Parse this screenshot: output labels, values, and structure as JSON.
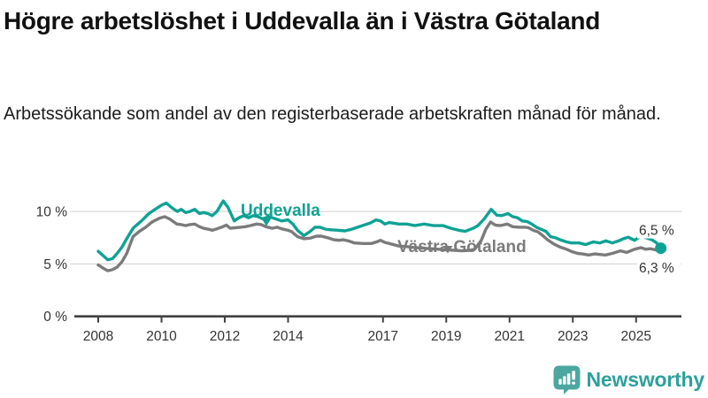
{
  "header": {
    "title": "Högre arbetslöshet i Uddevalla än i Västra Götaland",
    "subtitle": "Arbetssökande som andel av den registerbaserade arbetskraften månad för månad."
  },
  "footer": {
    "brand": "Newsworthy",
    "icon": "chart-speech-bubble-icon",
    "brand_color": "#2FA09A",
    "icon_color": "#4DA7A1"
  },
  "colors": {
    "accent_teal": "#0FA294",
    "series_gray": "#7B7B7B",
    "axis": "#404040",
    "gridline": "#D9D9D9",
    "tick_text": "#333333"
  },
  "chart_data": {
    "type": "line",
    "title": "Högre arbetslöshet i Uddevalla än i Västra Götaland",
    "subtitle": "Arbetssökande som andel av den registerbaserade arbetskraften månad för månad.",
    "xlabel": "",
    "ylabel": "",
    "grid": true,
    "legend_position": "inline-labels-on-lines",
    "xlim": [
      2007.3,
      2026.4
    ],
    "ylim": [
      0,
      12.6
    ],
    "y_ticks": [
      {
        "label": "0 %",
        "value": 0
      },
      {
        "label": "5 %",
        "value": 5
      },
      {
        "label": "10 %",
        "value": 10
      }
    ],
    "x_ticks": [
      {
        "label": "2008",
        "year": 2008
      },
      {
        "label": "2010",
        "year": 2010
      },
      {
        "label": "2012",
        "year": 2012
      },
      {
        "label": "2014",
        "year": 2014
      },
      {
        "label": "2017",
        "year": 2017
      },
      {
        "label": "2019",
        "year": 2019
      },
      {
        "label": "2021",
        "year": 2021
      },
      {
        "label": "2023",
        "year": 2023
      },
      {
        "label": "2025",
        "year": 2025
      }
    ],
    "series": [
      {
        "name": "Västra Götaland",
        "color": "#7B7B7B",
        "end_label": "6,3 %",
        "end_dot": false,
        "points": [
          [
            2008.0,
            4.9
          ],
          [
            2008.15,
            4.6
          ],
          [
            2008.3,
            4.35
          ],
          [
            2008.45,
            4.45
          ],
          [
            2008.6,
            4.7
          ],
          [
            2008.75,
            5.2
          ],
          [
            2008.9,
            6.0
          ],
          [
            2009.1,
            7.6
          ],
          [
            2009.3,
            8.1
          ],
          [
            2009.5,
            8.5
          ],
          [
            2009.7,
            9.0
          ],
          [
            2009.93,
            9.35
          ],
          [
            2010.1,
            9.5
          ],
          [
            2010.25,
            9.3
          ],
          [
            2010.48,
            8.8
          ],
          [
            2010.62,
            8.75
          ],
          [
            2010.76,
            8.65
          ],
          [
            2010.9,
            8.75
          ],
          [
            2011.05,
            8.8
          ],
          [
            2011.2,
            8.55
          ],
          [
            2011.33,
            8.4
          ],
          [
            2011.5,
            8.3
          ],
          [
            2011.6,
            8.2
          ],
          [
            2011.75,
            8.35
          ],
          [
            2011.9,
            8.5
          ],
          [
            2012.05,
            8.7
          ],
          [
            2012.17,
            8.4
          ],
          [
            2012.33,
            8.45
          ],
          [
            2012.5,
            8.5
          ],
          [
            2012.65,
            8.55
          ],
          [
            2012.8,
            8.65
          ],
          [
            2013.0,
            8.8
          ],
          [
            2013.15,
            8.75
          ],
          [
            2013.3,
            8.55
          ],
          [
            2013.5,
            8.4
          ],
          [
            2013.65,
            8.5
          ],
          [
            2013.8,
            8.35
          ],
          [
            2014.0,
            8.2
          ],
          [
            2014.1,
            8.1
          ],
          [
            2014.3,
            7.6
          ],
          [
            2014.5,
            7.4
          ],
          [
            2014.7,
            7.45
          ],
          [
            2014.9,
            7.65
          ],
          [
            2015.05,
            7.65
          ],
          [
            2015.25,
            7.5
          ],
          [
            2015.45,
            7.3
          ],
          [
            2015.6,
            7.25
          ],
          [
            2015.75,
            7.3
          ],
          [
            2015.9,
            7.2
          ],
          [
            2016.1,
            7.0
          ],
          [
            2016.36,
            6.95
          ],
          [
            2016.64,
            6.95
          ],
          [
            2016.8,
            7.1
          ],
          [
            2016.92,
            7.25
          ],
          [
            2017.06,
            7.05
          ],
          [
            2017.2,
            6.95
          ],
          [
            2017.5,
            6.7
          ],
          [
            2017.75,
            6.65
          ],
          [
            2018.0,
            6.55
          ],
          [
            2018.25,
            6.5
          ],
          [
            2018.5,
            6.45
          ],
          [
            2018.75,
            6.4
          ],
          [
            2019.0,
            6.35
          ],
          [
            2019.25,
            6.3
          ],
          [
            2019.5,
            6.25
          ],
          [
            2019.75,
            6.3
          ],
          [
            2019.9,
            6.4
          ],
          [
            2020.1,
            7.2
          ],
          [
            2020.25,
            8.3
          ],
          [
            2020.4,
            9.0
          ],
          [
            2020.55,
            8.7
          ],
          [
            2020.7,
            8.65
          ],
          [
            2020.93,
            8.8
          ],
          [
            2021.1,
            8.55
          ],
          [
            2021.3,
            8.5
          ],
          [
            2021.5,
            8.5
          ],
          [
            2021.6,
            8.45
          ],
          [
            2021.75,
            8.2
          ],
          [
            2021.9,
            8.05
          ],
          [
            2022.05,
            7.7
          ],
          [
            2022.2,
            7.3
          ],
          [
            2022.4,
            6.9
          ],
          [
            2022.6,
            6.6
          ],
          [
            2022.8,
            6.4
          ],
          [
            2022.95,
            6.2
          ],
          [
            2023.15,
            6.0
          ],
          [
            2023.3,
            5.95
          ],
          [
            2023.5,
            5.85
          ],
          [
            2023.7,
            5.95
          ],
          [
            2023.85,
            5.9
          ],
          [
            2024.03,
            5.85
          ],
          [
            2024.25,
            6.0
          ],
          [
            2024.5,
            6.25
          ],
          [
            2024.7,
            6.1
          ],
          [
            2024.95,
            6.4
          ],
          [
            2025.15,
            6.55
          ],
          [
            2025.3,
            6.4
          ],
          [
            2025.45,
            6.45
          ],
          [
            2025.6,
            6.35
          ],
          [
            2025.78,
            6.3
          ]
        ]
      },
      {
        "name": "Uddevalla",
        "color": "#0FA294",
        "end_label": "6,5 %",
        "end_dot": true,
        "points": [
          [
            2008.0,
            6.2
          ],
          [
            2008.15,
            5.8
          ],
          [
            2008.3,
            5.4
          ],
          [
            2008.45,
            5.5
          ],
          [
            2008.6,
            6.0
          ],
          [
            2008.75,
            6.6
          ],
          [
            2008.9,
            7.4
          ],
          [
            2009.1,
            8.4
          ],
          [
            2009.25,
            8.8
          ],
          [
            2009.4,
            9.2
          ],
          [
            2009.6,
            9.8
          ],
          [
            2009.8,
            10.2
          ],
          [
            2010.0,
            10.6
          ],
          [
            2010.15,
            10.8
          ],
          [
            2010.35,
            10.3
          ],
          [
            2010.5,
            10.0
          ],
          [
            2010.62,
            10.2
          ],
          [
            2010.76,
            9.9
          ],
          [
            2010.9,
            10.0
          ],
          [
            2011.05,
            10.2
          ],
          [
            2011.2,
            9.8
          ],
          [
            2011.33,
            9.9
          ],
          [
            2011.47,
            9.8
          ],
          [
            2011.6,
            9.6
          ],
          [
            2011.75,
            10.0
          ],
          [
            2011.95,
            11.0
          ],
          [
            2012.1,
            10.4
          ],
          [
            2012.3,
            9.1
          ],
          [
            2012.45,
            9.4
          ],
          [
            2012.6,
            9.6
          ],
          [
            2012.75,
            9.4
          ],
          [
            2012.9,
            9.6
          ],
          [
            2013.05,
            9.5
          ],
          [
            2013.2,
            9.3
          ],
          [
            2013.4,
            9.5
          ],
          [
            2013.6,
            9.3
          ],
          [
            2013.8,
            9.1
          ],
          [
            2014.0,
            9.2
          ],
          [
            2014.15,
            8.8
          ],
          [
            2014.3,
            8.2
          ],
          [
            2014.5,
            7.7
          ],
          [
            2014.7,
            8.1
          ],
          [
            2014.85,
            8.5
          ],
          [
            2015.0,
            8.5
          ],
          [
            2015.2,
            8.3
          ],
          [
            2015.4,
            8.25
          ],
          [
            2015.6,
            8.2
          ],
          [
            2015.8,
            8.15
          ],
          [
            2016.0,
            8.3
          ],
          [
            2016.2,
            8.5
          ],
          [
            2016.4,
            8.7
          ],
          [
            2016.6,
            8.9
          ],
          [
            2016.78,
            9.2
          ],
          [
            2016.92,
            9.1
          ],
          [
            2017.06,
            8.8
          ],
          [
            2017.2,
            8.95
          ],
          [
            2017.5,
            8.8
          ],
          [
            2017.75,
            8.8
          ],
          [
            2018.0,
            8.65
          ],
          [
            2018.3,
            8.8
          ],
          [
            2018.6,
            8.65
          ],
          [
            2018.9,
            8.65
          ],
          [
            2019.15,
            8.4
          ],
          [
            2019.4,
            8.2
          ],
          [
            2019.6,
            8.1
          ],
          [
            2019.85,
            8.4
          ],
          [
            2020.0,
            8.65
          ],
          [
            2020.2,
            9.3
          ],
          [
            2020.42,
            10.2
          ],
          [
            2020.6,
            9.65
          ],
          [
            2020.75,
            9.6
          ],
          [
            2020.95,
            9.8
          ],
          [
            2021.1,
            9.5
          ],
          [
            2021.25,
            9.4
          ],
          [
            2021.4,
            9.1
          ],
          [
            2021.55,
            9.05
          ],
          [
            2021.7,
            8.8
          ],
          [
            2021.85,
            8.5
          ],
          [
            2022.0,
            8.3
          ],
          [
            2022.15,
            8.1
          ],
          [
            2022.3,
            7.6
          ],
          [
            2022.45,
            7.5
          ],
          [
            2022.6,
            7.3
          ],
          [
            2022.8,
            7.1
          ],
          [
            2022.95,
            7.0
          ],
          [
            2023.2,
            7.0
          ],
          [
            2023.4,
            6.85
          ],
          [
            2023.65,
            7.1
          ],
          [
            2023.85,
            7.0
          ],
          [
            2024.05,
            7.2
          ],
          [
            2024.25,
            7.0
          ],
          [
            2024.45,
            7.2
          ],
          [
            2024.6,
            7.4
          ],
          [
            2024.75,
            7.55
          ],
          [
            2024.95,
            7.25
          ],
          [
            2025.15,
            7.65
          ],
          [
            2025.35,
            7.45
          ],
          [
            2025.5,
            7.3
          ],
          [
            2025.65,
            7.0
          ],
          [
            2025.78,
            6.5
          ]
        ]
      }
    ]
  }
}
